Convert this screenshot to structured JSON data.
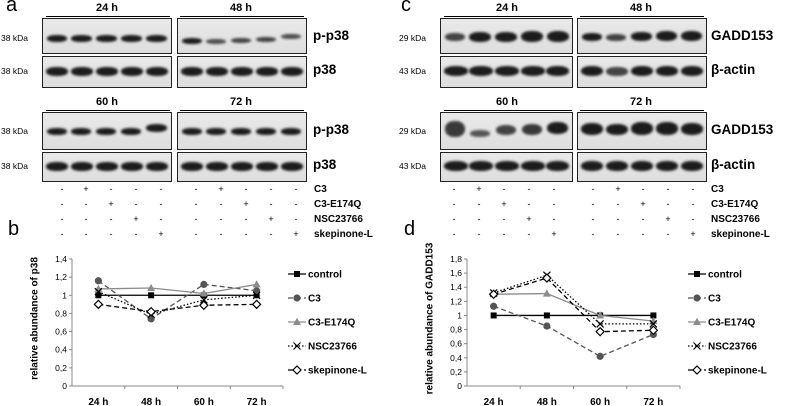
{
  "panels": {
    "a": "a",
    "b": "b",
    "c": "c",
    "d": "d"
  },
  "timepoints": [
    "24 h",
    "48 h",
    "60 h",
    "72 h"
  ],
  "kda": {
    "k38": "38 kDa",
    "k29": "29 kDa",
    "k43": "43 kDa"
  },
  "proteins": {
    "pp38": "p-p38",
    "p38": "p38",
    "gadd": "GADD153",
    "actin": "β-actin"
  },
  "treatments": [
    "C3",
    "C3-E174Q",
    "NSC23766",
    "skepinone-L"
  ],
  "treatment_signs": [
    [
      "-",
      "+",
      "-",
      "-",
      "-"
    ],
    [
      "-",
      "-",
      "+",
      "-",
      "-"
    ],
    [
      "-",
      "-",
      "-",
      "+",
      "-"
    ],
    [
      "-",
      "-",
      "-",
      "-",
      "+"
    ]
  ],
  "chart_data": [
    {
      "type": "line",
      "panel": "b",
      "ylabel": "relative abundance of p38",
      "categories": [
        "24 h",
        "48 h",
        "60 h",
        "72 h"
      ],
      "ylim": [
        0,
        1.4
      ],
      "yticks": [
        "0",
        "0,2",
        "0,4",
        "0,6",
        "0,8",
        "1",
        "1,2",
        "1,4"
      ],
      "series": [
        {
          "name": "control",
          "values": [
            1.0,
            1.0,
            1.0,
            1.0
          ],
          "color": "#000000",
          "marker": "square",
          "dash": "solid"
        },
        {
          "name": "C3",
          "values": [
            1.16,
            0.74,
            1.12,
            1.05
          ],
          "color": "#555555",
          "marker": "circle",
          "dash": "dashed"
        },
        {
          "name": "C3-E174Q",
          "values": [
            1.07,
            1.08,
            1.02,
            1.12
          ],
          "color": "#8c8c8c",
          "marker": "triangle",
          "dash": "solid"
        },
        {
          "name": "NSC23766",
          "values": [
            1.04,
            0.79,
            0.95,
            1.0
          ],
          "color": "#000000",
          "marker": "x",
          "dash": "dotted"
        },
        {
          "name": "skepinone-L",
          "values": [
            0.9,
            0.82,
            0.89,
            0.9
          ],
          "color": "#000000",
          "marker": "diamond",
          "dash": "dashed"
        }
      ]
    },
    {
      "type": "line",
      "panel": "d",
      "ylabel": "relative abundance of GADD153",
      "categories": [
        "24 h",
        "48 h",
        "60 h",
        "72 h"
      ],
      "ylim": [
        0,
        1.8
      ],
      "yticks": [
        "0",
        "0,2",
        "0,4",
        "0,6",
        "0,8",
        "1",
        "1,2",
        "1,4",
        "1,6",
        "1,8"
      ],
      "series": [
        {
          "name": "control",
          "values": [
            1.0,
            1.0,
            1.0,
            1.0
          ],
          "color": "#000000",
          "marker": "square",
          "dash": "solid"
        },
        {
          "name": "C3",
          "values": [
            1.13,
            0.85,
            0.42,
            0.73
          ],
          "color": "#555555",
          "marker": "circle",
          "dash": "dashed"
        },
        {
          "name": "C3-E174Q",
          "values": [
            1.3,
            1.31,
            1.0,
            0.92
          ],
          "color": "#8c8c8c",
          "marker": "triangle",
          "dash": "solid"
        },
        {
          "name": "NSC23766",
          "values": [
            1.32,
            1.57,
            0.88,
            0.88
          ],
          "color": "#000000",
          "marker": "x",
          "dash": "dotted"
        },
        {
          "name": "skepinone-L",
          "values": [
            1.3,
            1.53,
            0.77,
            0.79
          ],
          "color": "#000000",
          "marker": "diamond",
          "dash": "dashed"
        }
      ]
    }
  ]
}
